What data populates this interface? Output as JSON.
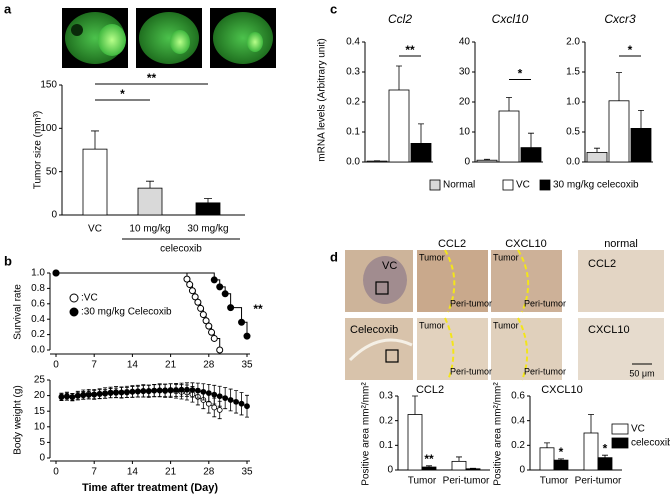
{
  "panel_labels": [
    "a",
    "b",
    "c",
    "d"
  ],
  "micrographs": {
    "row_labels": [
      "VC",
      "Celecoxib"
    ],
    "column_labels": [
      "CCL2",
      "CXCL10",
      "normal"
    ],
    "region_labels": [
      "Tumor",
      "Peri-tumor"
    ],
    "normal_labels": [
      "CCL2",
      "CXCL10"
    ],
    "scale_bar": "50 μm"
  },
  "chart_data": [
    {
      "type": "bar",
      "ylabel": "Tumor size (mm³)",
      "categories": [
        "VC",
        "10 mg/kg",
        "30 mg/kg"
      ],
      "group_label": "celecoxib",
      "values": [
        76,
        31,
        14
      ],
      "errors": [
        21,
        8,
        5
      ],
      "colors": [
        "#ffffff",
        "#d9d9d9",
        "#000000"
      ],
      "ylim": [
        0,
        150
      ],
      "yticks": [
        0,
        50,
        100,
        150
      ],
      "annotations": [
        "*",
        "**"
      ]
    },
    {
      "type": "step",
      "ylabel": "Survival rate",
      "xlim": [
        0,
        35
      ],
      "xticks": [
        0,
        7,
        14,
        21,
        28,
        35
      ],
      "ylim": [
        0,
        1
      ],
      "yticks": [
        {
          "value": 0,
          "label": "0.0"
        },
        0.2,
        0.4,
        0.6,
        0.8,
        {
          "value": 1,
          "label": "1.0"
        }
      ],
      "series": [
        {
          "name": ":VC",
          "color": "#ffffff",
          "x": [
            0,
            24,
            24.5,
            25,
            25.5,
            26,
            26.5,
            27,
            27.5,
            28,
            28.5,
            29,
            30
          ],
          "values": [
            1,
            0.92,
            0.85,
            0.77,
            0.69,
            0.62,
            0.54,
            0.46,
            0.38,
            0.31,
            0.23,
            0.15,
            0
          ]
        },
        {
          "name": ":30 mg/kg Celecoxib",
          "color": "#000000",
          "x": [
            0,
            29,
            30,
            31,
            32,
            34,
            35
          ],
          "values": [
            1,
            0.91,
            0.82,
            0.73,
            0.55,
            0.36,
            0.18
          ]
        }
      ],
      "annotations": [
        "**"
      ]
    },
    {
      "type": "line",
      "ylabel": "Body weight (g)",
      "xlabel": "Time after treatment (Day)",
      "xlim": [
        0,
        35
      ],
      "xticks": [
        0,
        7,
        14,
        21,
        28,
        35
      ],
      "ylim": [
        0,
        25
      ],
      "yticks": [
        0,
        5,
        10,
        15,
        20,
        25
      ],
      "series": [
        {
          "color": "#ffffff",
          "x": [
            1,
            2,
            3,
            4,
            5,
            6,
            7,
            8,
            9,
            10,
            11,
            12,
            13,
            14,
            15,
            16,
            17,
            18,
            19,
            20,
            21,
            22,
            23,
            24,
            25,
            26,
            27,
            28,
            29,
            30
          ],
          "values": [
            19.6,
            19.8,
            19.5,
            20.0,
            20.3,
            20.5,
            20.4,
            20.6,
            20.8,
            21.0,
            21.1,
            21.0,
            21.2,
            21.3,
            21.4,
            21.5,
            21.4,
            21.6,
            21.7,
            21.5,
            21.6,
            21.4,
            21.2,
            21.0,
            20.4,
            19.6,
            18.6,
            17.4,
            16.2,
            15.4
          ],
          "errors": [
            1.2,
            1.3,
            1.2,
            1.4,
            1.5,
            1.5,
            1.6,
            1.6,
            1.7,
            1.7,
            1.8,
            1.8,
            1.8,
            1.9,
            1.9,
            2.0,
            2.0,
            2.0,
            2.1,
            2.1,
            2.2,
            2.2,
            2.3,
            2.4,
            2.5,
            2.6,
            2.8,
            3.0,
            3.0,
            2.8
          ]
        },
        {
          "color": "#000000",
          "x": [
            1,
            2,
            3,
            4,
            5,
            6,
            7,
            8,
            9,
            10,
            11,
            12,
            13,
            14,
            15,
            16,
            17,
            18,
            19,
            20,
            21,
            22,
            23,
            24,
            25,
            26,
            27,
            28,
            29,
            30,
            31,
            32,
            33,
            34,
            35
          ],
          "values": [
            19.5,
            19.7,
            19.6,
            19.9,
            20.1,
            20.2,
            20.3,
            20.5,
            20.6,
            20.8,
            20.9,
            21.0,
            21.0,
            21.2,
            21.3,
            21.4,
            21.5,
            21.6,
            21.6,
            21.7,
            21.8,
            21.8,
            21.9,
            21.9,
            21.8,
            21.6,
            21.2,
            20.8,
            20.3,
            19.8,
            19.2,
            18.6,
            18.0,
            17.4,
            16.6
          ],
          "errors": [
            1.0,
            1.1,
            1.1,
            1.2,
            1.2,
            1.3,
            1.3,
            1.4,
            1.4,
            1.5,
            1.5,
            1.6,
            1.6,
            1.7,
            1.7,
            1.8,
            1.8,
            1.9,
            1.9,
            2.0,
            2.0,
            2.1,
            2.1,
            2.2,
            2.3,
            2.4,
            2.6,
            2.8,
            3.0,
            3.2,
            3.4,
            3.5,
            3.6,
            3.6,
            3.5
          ]
        }
      ]
    },
    {
      "type": "bar_panels",
      "ylabel": "mRNA levels (Arbitrary unit)",
      "categories": [
        "Normal",
        "VC",
        "30 mg/kg celecoxib"
      ],
      "colors": [
        "#d9d9d9",
        "#ffffff",
        "#000000"
      ],
      "subplots": [
        {
          "title": "Ccl2",
          "values": [
            0.003,
            0.24,
            0.062
          ],
          "errors": [
            0.001,
            0.08,
            0.065
          ],
          "ylim": [
            0,
            0.4
          ],
          "yticks": [
            {
              "value": 0,
              "label": "0.0"
            },
            0.1,
            0.2,
            0.3,
            0.4
          ],
          "annotation": "**"
        },
        {
          "title": "Cxcl10",
          "values": [
            0.6,
            17,
            4.8
          ],
          "errors": [
            0.3,
            4.5,
            4.8
          ],
          "ylim": [
            0,
            40
          ],
          "yticks": [
            0,
            10,
            20,
            30,
            40
          ],
          "annotation": "*"
        },
        {
          "title": "Cxcr3",
          "values": [
            0.16,
            1.02,
            0.56
          ],
          "errors": [
            0.07,
            0.47,
            0.3
          ],
          "ylim": [
            0,
            2
          ],
          "yticks": [
            {
              "value": 0,
              "label": "0.0"
            },
            0.5,
            {
              "value": 1,
              "label": "1.0"
            },
            1.5,
            {
              "value": 2,
              "label": "2.0"
            }
          ],
          "annotation": "*"
        }
      ]
    },
    {
      "type": "grouped_bar_panels",
      "ylabel": "Positive area mm²/mm²",
      "categories": [
        "Tumor",
        "Peri-tumor"
      ],
      "legend": [
        {
          "name": "VC",
          "color": "#ffffff"
        },
        {
          "name": "celecoxib",
          "color": "#000000"
        }
      ],
      "subplots": [
        {
          "title": "CCL2",
          "ylim": [
            0,
            0.3
          ],
          "yticks": [
            0,
            0.1,
            0.2,
            0.3
          ],
          "annotations": [
            "**"
          ],
          "series": [
            {
              "values": [
                0.225,
                0.035
              ],
              "errors": [
                0.075,
                0.018
              ]
            },
            {
              "values": [
                0.012,
                0.005
              ],
              "errors": [
                0.005,
                0.002
              ]
            }
          ]
        },
        {
          "title": "CXCL10",
          "ylim": [
            0,
            0.6
          ],
          "yticks": [
            0,
            0.2,
            0.4,
            0.6
          ],
          "annotations": [
            "*",
            "*"
          ],
          "series": [
            {
              "values": [
                0.18,
                0.3
              ],
              "errors": [
                0.04,
                0.15
              ]
            },
            {
              "values": [
                0.08,
                0.1
              ],
              "errors": [
                0.01,
                0.02
              ]
            }
          ]
        }
      ]
    }
  ]
}
